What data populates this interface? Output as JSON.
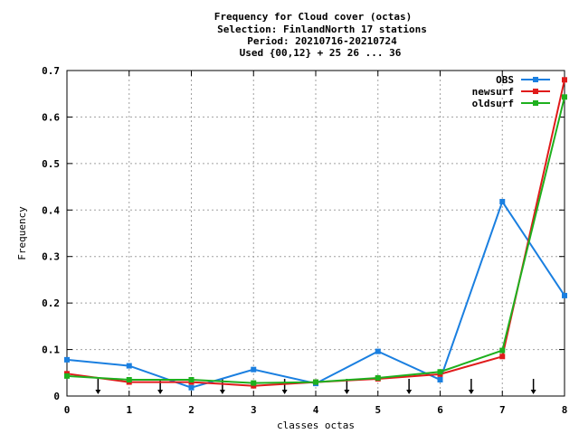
{
  "chart_data": {
    "type": "line",
    "title_lines": [
      "Frequency  for Cloud cover (octas)",
      "Selection: FinlandNorth     17 stations",
      "Period: 20210716-20210724",
      "Used {00,12} + 25 26 ... 36"
    ],
    "xlabel": "classes octas",
    "ylabel": "Frequency",
    "x": [
      0,
      1,
      2,
      3,
      4,
      5,
      6,
      7,
      8
    ],
    "xlim": [
      0,
      8
    ],
    "ylim": [
      0,
      0.7
    ],
    "x_ticks": [
      "0",
      "1",
      "2",
      "3",
      "4",
      "5",
      "6",
      "7",
      "8"
    ],
    "y_ticks": [
      "0",
      "0.1",
      "0.2",
      "0.3",
      "0.4",
      "0.5",
      "0.6",
      "0.7"
    ],
    "y_tick_values": [
      0,
      0.1,
      0.2,
      0.3,
      0.4,
      0.5,
      0.6,
      0.7
    ],
    "grid": true,
    "legend_position": "top-right",
    "class_boundary_arrows": [
      0.5,
      1.5,
      2.5,
      3.5,
      4.5,
      5.5,
      6.5,
      7.5
    ],
    "series": [
      {
        "name": "OBS",
        "color": "#1a7fe0",
        "values": [
          0.078,
          0.065,
          0.018,
          0.057,
          0.027,
          0.096,
          0.035,
          0.418,
          0.216
        ]
      },
      {
        "name": "newsurf",
        "color": "#e01b1b",
        "values": [
          0.048,
          0.03,
          0.03,
          0.022,
          0.03,
          0.037,
          0.047,
          0.085,
          0.68
        ]
      },
      {
        "name": "oldsurf",
        "color": "#1eb01e",
        "values": [
          0.043,
          0.035,
          0.035,
          0.028,
          0.03,
          0.039,
          0.052,
          0.098,
          0.643
        ]
      }
    ]
  }
}
